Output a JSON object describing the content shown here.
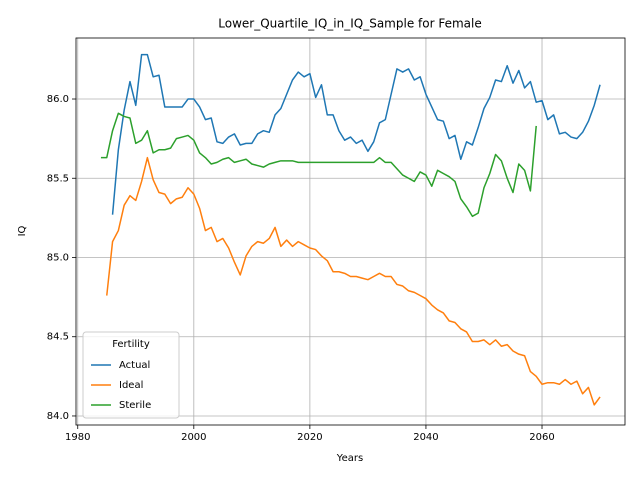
{
  "chart_data": {
    "type": "line",
    "title": "Lower_Quartile_IQ_in_IQ_Sample for Female",
    "x_label": "Years",
    "y_label": "IQ",
    "legend_title": "Fertility",
    "legend_loc": "lower left",
    "grid": true,
    "xlim": [
      1979.7,
      2074.3
    ],
    "ylim": [
      83.943,
      86.385
    ],
    "xticks": [
      1980,
      2000,
      2020,
      2040,
      2060
    ],
    "yticks": [
      {
        "value": 84,
        "label": "84.0"
      },
      84.5,
      {
        "value": 85,
        "label": "85.0"
      },
      85.5,
      {
        "value": 86,
        "label": "86.0"
      }
    ],
    "series": [
      {
        "name": "Actual",
        "color": "#1f77b4",
        "x": [
          1986,
          1987,
          1988,
          1989,
          1990,
          1991,
          1992,
          1993,
          1994,
          1995,
          1996,
          1997,
          1998,
          1999,
          2000,
          2001,
          2002,
          2003,
          2004,
          2005,
          2006,
          2007,
          2008,
          2009,
          2010,
          2011,
          2012,
          2013,
          2014,
          2015,
          2016,
          2017,
          2018,
          2019,
          2020,
          2021,
          2022,
          2023,
          2024,
          2025,
          2026,
          2027,
          2028,
          2029,
          2030,
          2031,
          2032,
          2033,
          2034,
          2035,
          2036,
          2037,
          2038,
          2039,
          2040,
          2041,
          2042,
          2043,
          2044,
          2045,
          2046,
          2047,
          2048,
          2049,
          2050,
          2051,
          2052,
          2053,
          2054,
          2055,
          2056,
          2057,
          2058,
          2059,
          2060,
          2061,
          2062,
          2063,
          2064,
          2065,
          2066,
          2067,
          2068,
          2069,
          2070
        ],
        "values": [
          85.27,
          85.68,
          85.93,
          86.11,
          85.96,
          86.28,
          86.28,
          86.14,
          86.15,
          85.95,
          85.95,
          85.95,
          85.95,
          86.0,
          86.0,
          85.95,
          85.87,
          85.88,
          85.73,
          85.72,
          85.76,
          85.78,
          85.71,
          85.72,
          85.72,
          85.78,
          85.8,
          85.79,
          85.9,
          85.94,
          86.03,
          86.12,
          86.17,
          86.14,
          86.16,
          86.01,
          86.09,
          85.9,
          85.9,
          85.8,
          85.74,
          85.76,
          85.72,
          85.74,
          85.67,
          85.73,
          85.85,
          85.87,
          86.03,
          86.19,
          86.17,
          86.19,
          86.12,
          86.14,
          86.03,
          85.95,
          85.87,
          85.86,
          85.75,
          85.77,
          85.62,
          85.73,
          85.71,
          85.82,
          85.94,
          86.01,
          86.12,
          86.11,
          86.21,
          86.1,
          86.18,
          86.07,
          86.11,
          85.98,
          85.99,
          85.87,
          85.9,
          85.78,
          85.79,
          85.76,
          85.75,
          85.79,
          85.86,
          85.96,
          86.09
        ]
      },
      {
        "name": "Ideal",
        "color": "#ff7f0e",
        "x": [
          1985,
          1986,
          1987,
          1988,
          1989,
          1990,
          1991,
          1992,
          1993,
          1994,
          1995,
          1996,
          1997,
          1998,
          1999,
          2000,
          2001,
          2002,
          2003,
          2004,
          2005,
          2006,
          2007,
          2008,
          2009,
          2010,
          2011,
          2012,
          2013,
          2014,
          2015,
          2016,
          2017,
          2018,
          2019,
          2020,
          2021,
          2022,
          2023,
          2024,
          2025,
          2026,
          2027,
          2028,
          2029,
          2030,
          2031,
          2032,
          2033,
          2034,
          2035,
          2036,
          2037,
          2038,
          2039,
          2040,
          2041,
          2042,
          2043,
          2044,
          2045,
          2046,
          2047,
          2048,
          2049,
          2050,
          2051,
          2052,
          2053,
          2054,
          2055,
          2056,
          2057,
          2058,
          2059,
          2060,
          2061,
          2062,
          2063,
          2064,
          2065,
          2066,
          2067,
          2068,
          2069,
          2070
        ],
        "values": [
          84.76,
          85.1,
          85.17,
          85.33,
          85.39,
          85.36,
          85.48,
          85.63,
          85.49,
          85.41,
          85.4,
          85.34,
          85.37,
          85.38,
          85.44,
          85.4,
          85.31,
          85.17,
          85.19,
          85.1,
          85.12,
          85.06,
          84.97,
          84.89,
          85.01,
          85.07,
          85.1,
          85.09,
          85.12,
          85.19,
          85.07,
          85.11,
          85.07,
          85.1,
          85.08,
          85.06,
          85.05,
          85.01,
          84.98,
          84.91,
          84.91,
          84.9,
          84.88,
          84.88,
          84.87,
          84.86,
          84.88,
          84.9,
          84.88,
          84.88,
          84.83,
          84.82,
          84.79,
          84.78,
          84.76,
          84.74,
          84.7,
          84.67,
          84.65,
          84.6,
          84.59,
          84.55,
          84.53,
          84.47,
          84.47,
          84.48,
          84.45,
          84.48,
          84.44,
          84.45,
          84.41,
          84.39,
          84.38,
          84.28,
          84.25,
          84.2,
          84.21,
          84.21,
          84.2,
          84.23,
          84.2,
          84.22,
          84.14,
          84.18,
          84.07,
          84.12
        ]
      },
      {
        "name": "Sterile",
        "color": "#2ca02c",
        "x": [
          1984,
          1985,
          1986,
          1987,
          1988,
          1989,
          1990,
          1991,
          1992,
          1993,
          1994,
          1995,
          1996,
          1997,
          1998,
          1999,
          2000,
          2001,
          2002,
          2003,
          2004,
          2005,
          2006,
          2007,
          2008,
          2009,
          2010,
          2011,
          2012,
          2013,
          2014,
          2015,
          2016,
          2017,
          2018,
          2019,
          2020,
          2021,
          2022,
          2023,
          2024,
          2025,
          2026,
          2027,
          2028,
          2029,
          2030,
          2031,
          2032,
          2033,
          2034,
          2035,
          2036,
          2037,
          2038,
          2039,
          2040,
          2041,
          2042,
          2043,
          2044,
          2045,
          2046,
          2047,
          2048,
          2049,
          2050,
          2051,
          2052,
          2053,
          2054,
          2055,
          2056,
          2057,
          2058,
          2059
        ],
        "values": [
          85.63,
          85.63,
          85.8,
          85.91,
          85.89,
          85.88,
          85.72,
          85.74,
          85.8,
          85.66,
          85.68,
          85.68,
          85.69,
          85.75,
          85.76,
          85.77,
          85.74,
          85.66,
          85.63,
          85.59,
          85.6,
          85.62,
          85.63,
          85.6,
          85.61,
          85.62,
          85.59,
          85.58,
          85.57,
          85.59,
          85.6,
          85.61,
          85.61,
          85.61,
          85.6,
          85.6,
          85.6,
          85.6,
          85.6,
          85.6,
          85.6,
          85.6,
          85.6,
          85.6,
          85.6,
          85.6,
          85.6,
          85.6,
          85.63,
          85.6,
          85.6,
          85.56,
          85.52,
          85.5,
          85.48,
          85.54,
          85.52,
          85.45,
          85.55,
          85.53,
          85.51,
          85.48,
          85.37,
          85.32,
          85.26,
          85.28,
          85.44,
          85.53,
          85.65,
          85.61,
          85.5,
          85.41,
          85.59,
          85.55,
          85.42,
          85.83
        ]
      }
    ]
  }
}
